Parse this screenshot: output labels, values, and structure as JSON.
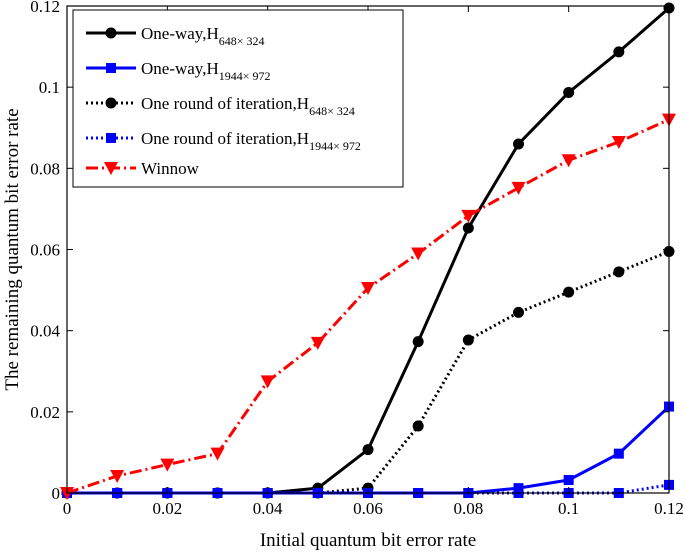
{
  "chart_data": {
    "type": "line",
    "xlabel": "Initial quantum bit error rate",
    "ylabel": "The remaining quantum bit error rate",
    "xlim": [
      0,
      0.12
    ],
    "ylim": [
      0,
      0.12
    ],
    "x_ticks": [
      "0",
      "0.02",
      "0.04",
      "0.06",
      "0.08",
      "0.1",
      "0.12"
    ],
    "y_ticks": [
      "0",
      "0.02",
      "0.04",
      "0.06",
      "0.08",
      "0.1",
      "0.12"
    ],
    "grid": false,
    "legend_position": "top-left",
    "x": [
      0,
      0.01,
      0.02,
      0.03,
      0.04,
      0.05,
      0.06,
      0.07,
      0.08,
      0.09,
      0.1,
      0.11,
      0.12
    ],
    "series": [
      {
        "name": "One-way,H",
        "subscript": "648× 324",
        "color": "#000000",
        "line_style": "solid",
        "marker": "circle",
        "values": [
          0,
          0,
          0,
          0,
          0,
          0.0012,
          0.0107,
          0.0373,
          0.0653,
          0.086,
          0.0987,
          0.1087,
          0.1195
        ]
      },
      {
        "name": "One-way,H",
        "subscript": "1944× 972",
        "color": "#0000ff",
        "line_style": "solid",
        "marker": "square",
        "values": [
          0,
          0,
          0,
          0,
          0,
          0,
          0,
          0,
          0,
          0.0012,
          0.0032,
          0.0097,
          0.0213
        ]
      },
      {
        "name": "One round of iteration,H",
        "subscript": "648× 324",
        "color": "#000000",
        "line_style": "dotted",
        "marker": "circle",
        "values": [
          0,
          0,
          0,
          0,
          0,
          0,
          0.0012,
          0.0165,
          0.0377,
          0.0445,
          0.0495,
          0.0545,
          0.0595
        ]
      },
      {
        "name": "One round of iteration,H",
        "subscript": "1944× 972",
        "color": "#0000ff",
        "line_style": "dotted",
        "marker": "square",
        "values": [
          0,
          0,
          0,
          0,
          0,
          0,
          0,
          0,
          0,
          0,
          0,
          0,
          0.002
        ]
      },
      {
        "name": "Winnow",
        "subscript": "",
        "color": "#ff0000",
        "line_style": "dashdot",
        "marker": "triangle-down",
        "values": [
          0,
          0.0042,
          0.007,
          0.0097,
          0.0275,
          0.037,
          0.0505,
          0.059,
          0.0683,
          0.0752,
          0.082,
          0.0865,
          0.092
        ]
      }
    ]
  }
}
